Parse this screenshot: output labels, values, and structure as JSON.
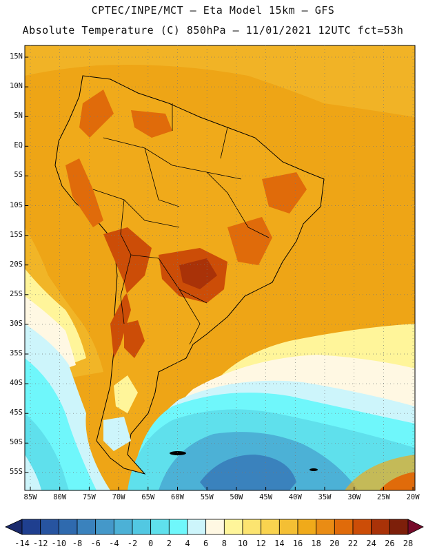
{
  "header": {
    "line1": "CPTEC/INPE/MCT –  Eta Model 15km – GFS",
    "line2": "Absolute Temperature (C) 850hPa – 11/01/2021 12UTC fct=53h"
  },
  "axes": {
    "lat_labels": [
      "15N",
      "10N",
      "5N",
      "EQ",
      "5S",
      "10S",
      "15S",
      "20S",
      "25S",
      "30S",
      "35S",
      "40S",
      "45S",
      "50S",
      "55S"
    ],
    "lon_labels": [
      "85W",
      "80W",
      "75W",
      "70W",
      "65W",
      "60W",
      "55W",
      "50W",
      "45W",
      "40W",
      "35W",
      "30W",
      "25W",
      "20W"
    ]
  },
  "colorbar": {
    "labels": [
      "-14",
      "-12",
      "-10",
      "-8",
      "-6",
      "-4",
      "-2",
      "0",
      "2",
      "4",
      "6",
      "8",
      "10",
      "12",
      "14",
      "16",
      "18",
      "20",
      "22",
      "24",
      "26",
      "28"
    ],
    "colors": [
      "#1f3f8f",
      "#2754a0",
      "#2f6aae",
      "#3a82bd",
      "#4498c9",
      "#4cb1d6",
      "#52c8e2",
      "#5fe0ec",
      "#6ff7fb",
      "#cdf5fb",
      "#fff8e3",
      "#fff59a",
      "#fce470",
      "#f9d34f",
      "#f4bf34",
      "#f0aa1a",
      "#ea8c14",
      "#e06b0a",
      "#cc4d07",
      "#a93208",
      "#7d1f0a"
    ],
    "under_color": "#1a2a6c",
    "over_color": "#760a2a"
  },
  "map": {
    "background_color": "#eea516"
  }
}
